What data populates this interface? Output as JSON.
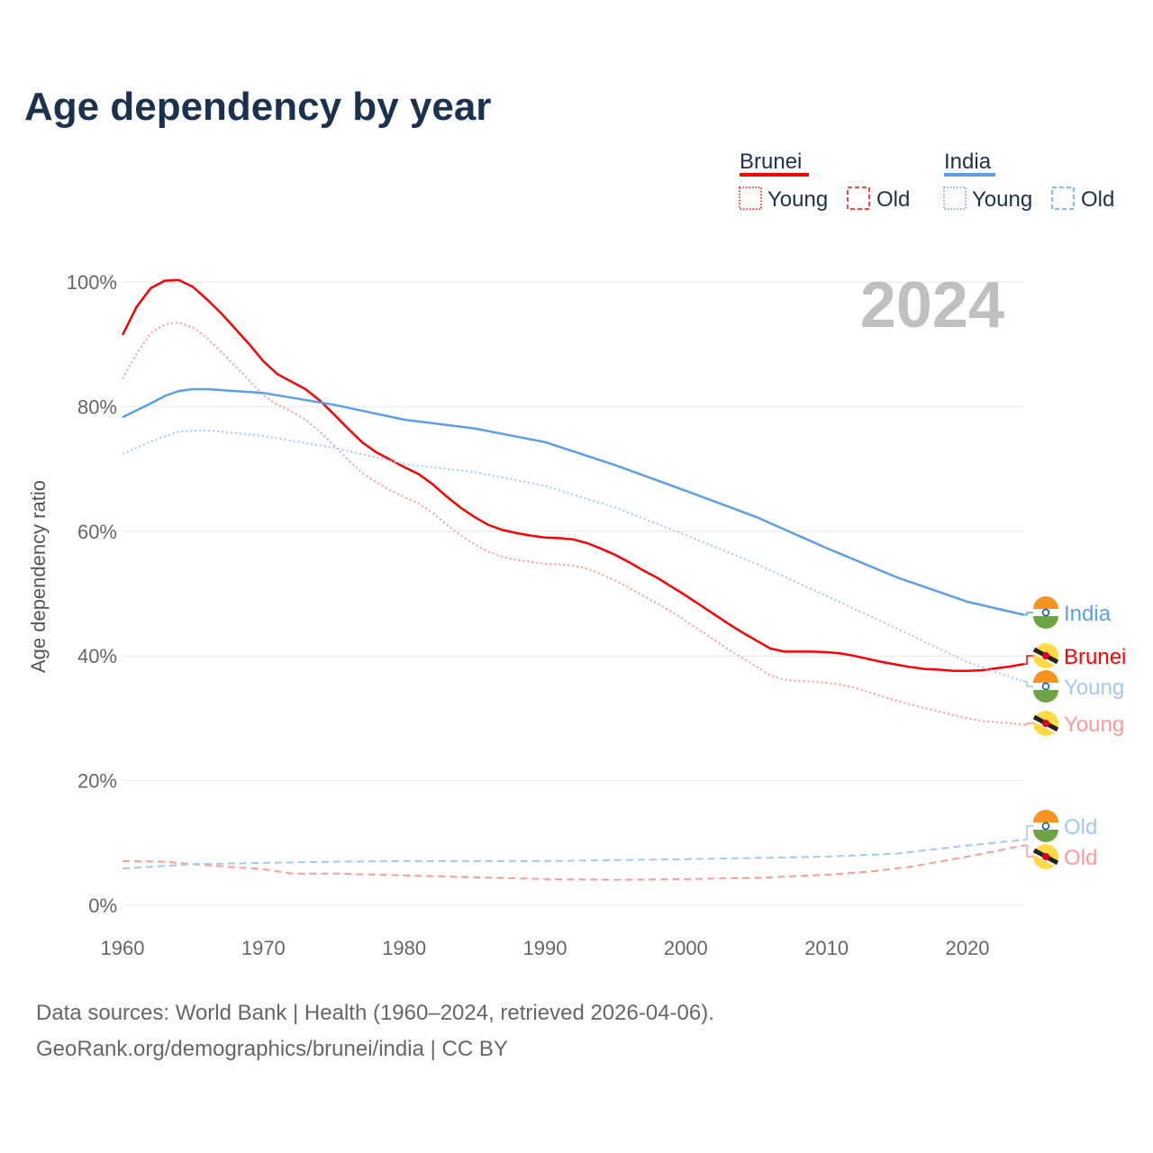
{
  "chart_data": {
    "type": "line",
    "title": "Age dependency by year",
    "ylabel": "Age dependency ratio",
    "xlabel": "",
    "xlim": [
      1960,
      2024
    ],
    "ylim": [
      0,
      100
    ],
    "x_ticks": [
      "1960",
      "1970",
      "1980",
      "1990",
      "2000",
      "2010",
      "2020"
    ],
    "y_ticks": [
      "0%",
      "20%",
      "40%",
      "60%",
      "80%",
      "100%"
    ],
    "year_label": "2024",
    "legend": {
      "groups": [
        {
          "name": "Brunei",
          "color": "#ff0000",
          "items": [
            "Young",
            "Old"
          ]
        },
        {
          "name": "India",
          "color": "#5aa0e8",
          "items": [
            "Young",
            "Old"
          ]
        }
      ],
      "placement": "top-right"
    },
    "series": [
      {
        "key": "bn_total",
        "name": "Brunei",
        "label": "Brunei",
        "color": "#ff0000",
        "style": "solid",
        "points": [
          [
            1960,
            91.5
          ],
          [
            1961,
            96
          ],
          [
            1962,
            99
          ],
          [
            1963,
            100.2
          ],
          [
            1964,
            100.3
          ],
          [
            1965,
            99.2
          ],
          [
            1966,
            97.2
          ],
          [
            1967,
            95
          ],
          [
            1968,
            92.5
          ],
          [
            1969,
            90
          ],
          [
            1970,
            87.3
          ],
          [
            1971,
            85.2
          ],
          [
            1972,
            84
          ],
          [
            1973,
            82.8
          ],
          [
            1974,
            81
          ],
          [
            1975,
            78.8
          ],
          [
            1976,
            76.5
          ],
          [
            1977,
            74.3
          ],
          [
            1978,
            72.7
          ],
          [
            1979,
            71.5
          ],
          [
            1980,
            70.3
          ],
          [
            1981,
            69.2
          ],
          [
            1982,
            67.6
          ],
          [
            1983,
            65.6
          ],
          [
            1984,
            63.8
          ],
          [
            1985,
            62.3
          ],
          [
            1986,
            61
          ],
          [
            1987,
            60.2
          ],
          [
            1988,
            59.7
          ],
          [
            1989,
            59.3
          ],
          [
            1990,
            59
          ],
          [
            1991,
            58.9
          ],
          [
            1992,
            58.7
          ],
          [
            1993,
            58.1
          ],
          [
            1994,
            57.2
          ],
          [
            1995,
            56.2
          ],
          [
            1996,
            55
          ],
          [
            1997,
            53.7
          ],
          [
            1998,
            52.5
          ],
          [
            1999,
            51.1
          ],
          [
            2000,
            49.7
          ],
          [
            2001,
            48.2
          ],
          [
            2002,
            46.7
          ],
          [
            2003,
            45.2
          ],
          [
            2004,
            43.8
          ],
          [
            2005,
            42.5
          ],
          [
            2006,
            41.2
          ],
          [
            2007,
            40.7
          ],
          [
            2008,
            40.7
          ],
          [
            2009,
            40.7
          ],
          [
            2010,
            40.6
          ],
          [
            2011,
            40.4
          ],
          [
            2012,
            40
          ],
          [
            2013,
            39.5
          ],
          [
            2014,
            39
          ],
          [
            2015,
            38.6
          ],
          [
            2016,
            38.2
          ],
          [
            2017,
            37.9
          ],
          [
            2018,
            37.8
          ],
          [
            2019,
            37.6
          ],
          [
            2020,
            37.6
          ],
          [
            2021,
            37.7
          ],
          [
            2022,
            38
          ],
          [
            2023,
            38.3
          ],
          [
            2024,
            38.7
          ]
        ]
      },
      {
        "key": "bn_young",
        "name": "Brunei Young",
        "label": "Young",
        "color": "#ff9a9a",
        "style": "dotted",
        "points": [
          [
            1960,
            84.5
          ],
          [
            1961,
            88.5
          ],
          [
            1962,
            91.8
          ],
          [
            1963,
            93.2
          ],
          [
            1964,
            93.5
          ],
          [
            1965,
            92.7
          ],
          [
            1966,
            91
          ],
          [
            1967,
            88.8
          ],
          [
            1968,
            86.5
          ],
          [
            1969,
            84.2
          ],
          [
            1970,
            81.8
          ],
          [
            1971,
            80.3
          ],
          [
            1972,
            79.2
          ],
          [
            1973,
            77.9
          ],
          [
            1974,
            76
          ],
          [
            1975,
            73.8
          ],
          [
            1976,
            71.5
          ],
          [
            1977,
            69.4
          ],
          [
            1978,
            67.9
          ],
          [
            1979,
            66.6
          ],
          [
            1980,
            65.5
          ],
          [
            1981,
            64.5
          ],
          [
            1982,
            63
          ],
          [
            1983,
            61.1
          ],
          [
            1984,
            59.4
          ],
          [
            1985,
            57.9
          ],
          [
            1986,
            56.7
          ],
          [
            1987,
            55.9
          ],
          [
            1988,
            55.4
          ],
          [
            1989,
            55.1
          ],
          [
            1990,
            54.8
          ],
          [
            1991,
            54.7
          ],
          [
            1992,
            54.5
          ],
          [
            1993,
            54
          ],
          [
            1994,
            53.1
          ],
          [
            1995,
            52.1
          ],
          [
            1996,
            50.9
          ],
          [
            1997,
            49.6
          ],
          [
            1998,
            48.4
          ],
          [
            1999,
            47.1
          ],
          [
            2000,
            45.6
          ],
          [
            2001,
            44.1
          ],
          [
            2002,
            42.6
          ],
          [
            2003,
            41.1
          ],
          [
            2004,
            39.7
          ],
          [
            2005,
            38.3
          ],
          [
            2006,
            36.9
          ],
          [
            2007,
            36.2
          ],
          [
            2008,
            36
          ],
          [
            2009,
            35.9
          ],
          [
            2010,
            35.7
          ],
          [
            2011,
            35.4
          ],
          [
            2012,
            34.9
          ],
          [
            2013,
            34.2
          ],
          [
            2014,
            33.5
          ],
          [
            2015,
            32.8
          ],
          [
            2016,
            32.2
          ],
          [
            2017,
            31.6
          ],
          [
            2018,
            31.1
          ],
          [
            2019,
            30.5
          ],
          [
            2020,
            30
          ],
          [
            2021,
            29.6
          ],
          [
            2022,
            29.4
          ],
          [
            2023,
            29.2
          ],
          [
            2024,
            29
          ]
        ]
      },
      {
        "key": "bn_old",
        "name": "Brunei Old",
        "label": "Old",
        "color": "#ff9a9a",
        "style": "dashed",
        "points": [
          [
            1960,
            7.1
          ],
          [
            1963,
            7
          ],
          [
            1965,
            6.6
          ],
          [
            1968,
            6.1
          ],
          [
            1970,
            5.8
          ],
          [
            1972,
            5.1
          ],
          [
            1975,
            5.1
          ],
          [
            1980,
            4.8
          ],
          [
            1985,
            4.5
          ],
          [
            1990,
            4.2
          ],
          [
            1995,
            4.1
          ],
          [
            2000,
            4.2
          ],
          [
            2005,
            4.4
          ],
          [
            2010,
            4.9
          ],
          [
            2013,
            5.4
          ],
          [
            2016,
            6.2
          ],
          [
            2020,
            7.8
          ],
          [
            2024,
            9.6
          ]
        ]
      },
      {
        "key": "in_total",
        "name": "India",
        "label": "India",
        "color": "#5aa0e8",
        "style": "solid",
        "points": [
          [
            1960,
            78.3
          ],
          [
            1962,
            80.5
          ],
          [
            1963,
            81.7
          ],
          [
            1964,
            82.5
          ],
          [
            1965,
            82.8
          ],
          [
            1966,
            82.8
          ],
          [
            1968,
            82.5
          ],
          [
            1970,
            82.2
          ],
          [
            1975,
            80.3
          ],
          [
            1980,
            77.9
          ],
          [
            1985,
            76.5
          ],
          [
            1990,
            74.3
          ],
          [
            1995,
            70.6
          ],
          [
            2000,
            66.5
          ],
          [
            2005,
            62.3
          ],
          [
            2010,
            57.3
          ],
          [
            2015,
            52.6
          ],
          [
            2020,
            48.7
          ],
          [
            2024,
            46.6
          ]
        ]
      },
      {
        "key": "in_young",
        "name": "India Young",
        "label": "Young",
        "color": "#a3c8f2",
        "style": "dotted",
        "points": [
          [
            1960,
            72.4
          ],
          [
            1962,
            74.4
          ],
          [
            1964,
            76
          ],
          [
            1966,
            76.2
          ],
          [
            1970,
            75.3
          ],
          [
            1975,
            73.4
          ],
          [
            1980,
            70.8
          ],
          [
            1985,
            69.5
          ],
          [
            1990,
            67.3
          ],
          [
            1995,
            63.8
          ],
          [
            2000,
            59.4
          ],
          [
            2005,
            54.8
          ],
          [
            2010,
            49.6
          ],
          [
            2015,
            44.4
          ],
          [
            2020,
            39
          ],
          [
            2024,
            35.9
          ]
        ]
      },
      {
        "key": "in_old",
        "name": "India Old",
        "label": "Old",
        "color": "#a3c8f2",
        "style": "dashed",
        "points": [
          [
            1960,
            5.9
          ],
          [
            1965,
            6.6
          ],
          [
            1970,
            6.8
          ],
          [
            1975,
            7
          ],
          [
            1980,
            7.1
          ],
          [
            1990,
            7.1
          ],
          [
            2000,
            7.4
          ],
          [
            2010,
            7.8
          ],
          [
            2015,
            8.3
          ],
          [
            2020,
            9.6
          ],
          [
            2024,
            10.5
          ]
        ]
      }
    ]
  },
  "footer": {
    "line1": "Data sources: World Bank | Health (1960–2024, retrieved 2026-04-06).",
    "line2": "GeoRank.org/demographics/brunei/india | CC BY"
  }
}
